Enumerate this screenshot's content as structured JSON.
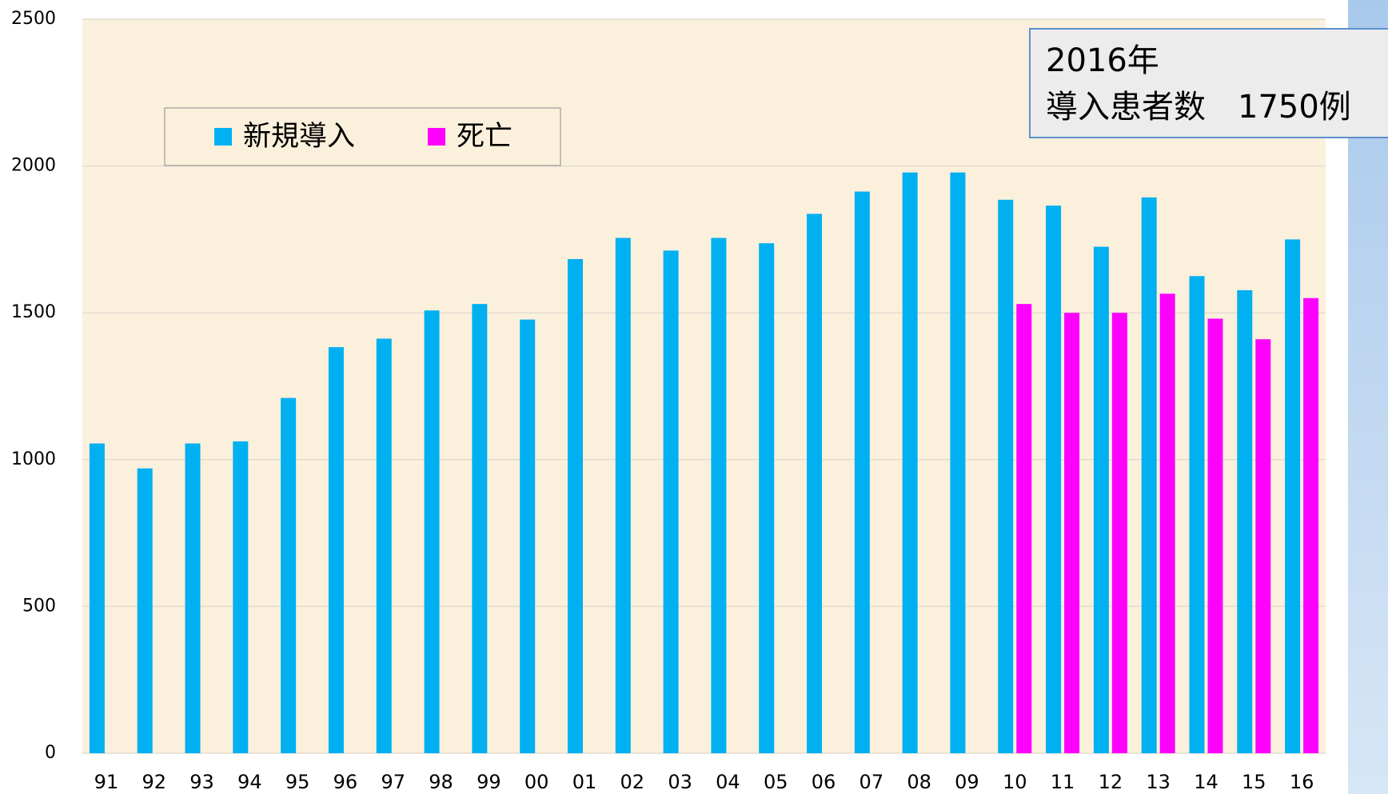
{
  "chart_data": {
    "type": "bar",
    "categories": [
      "91",
      "92",
      "93",
      "94",
      "95",
      "96",
      "97",
      "98",
      "99",
      "00",
      "01",
      "02",
      "03",
      "04",
      "05",
      "06",
      "07",
      "08",
      "09",
      "10",
      "11",
      "12",
      "13",
      "14",
      "15",
      "16"
    ],
    "series": [
      {
        "name": "新規導入",
        "color": "#00b0f0",
        "values": [
          1055,
          970,
          1055,
          1062,
          1210,
          1383,
          1412,
          1508,
          1530,
          1477,
          1683,
          1755,
          1712,
          1755,
          1737,
          1837,
          1913,
          1978,
          1978,
          1885,
          1865,
          1725,
          1893,
          1625,
          1577,
          1750
        ]
      },
      {
        "name": "死亡",
        "color": "#ff00ff",
        "values": [
          null,
          null,
          null,
          null,
          null,
          null,
          null,
          null,
          null,
          null,
          null,
          null,
          null,
          null,
          null,
          null,
          null,
          null,
          null,
          1530,
          1500,
          1500,
          1565,
          1480,
          1410,
          1550
        ]
      }
    ],
    "ylim": [
      0,
      2500
    ],
    "yticks": [
      0,
      500,
      1000,
      1500,
      2000,
      2500
    ],
    "grid": true,
    "annotations": [
      "2016年",
      "導入患者数　1750例"
    ]
  }
}
